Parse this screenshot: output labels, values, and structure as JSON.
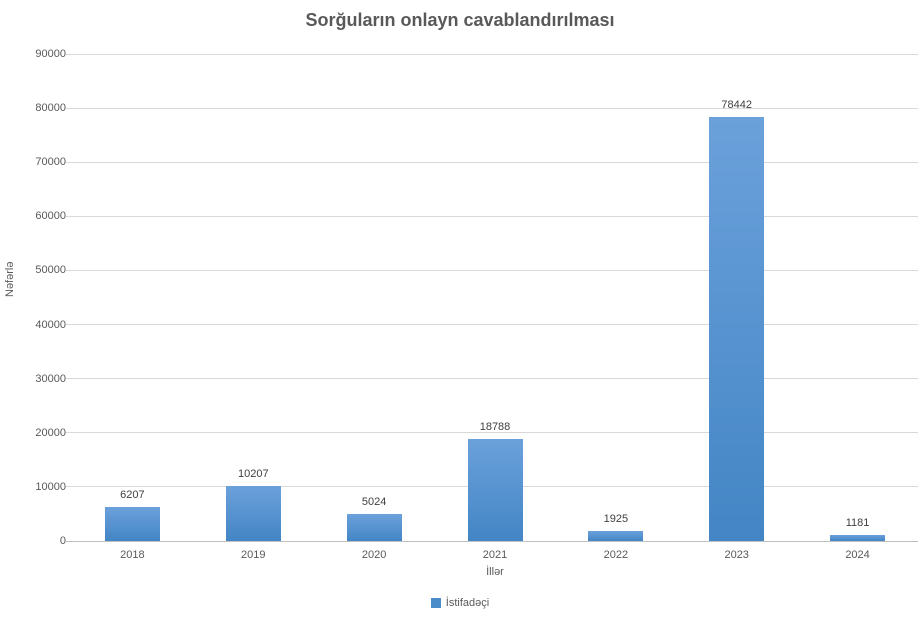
{
  "chart_data": {
    "type": "bar",
    "title": "Sorğuların onlayn cavablandırılması",
    "xlabel": "İllər",
    "ylabel": "Nəfərlə",
    "categories": [
      "2018",
      "2019",
      "2020",
      "2021",
      "2022",
      "2023",
      "2024"
    ],
    "series": [
      {
        "name": "İstifadəçi",
        "values": [
          6207,
          10207,
          5024,
          18788,
          1925,
          78442,
          1181
        ]
      }
    ],
    "data_labels": [
      "6207",
      "10207",
      "5024",
      "18788",
      "1925",
      "78442",
      "1181"
    ],
    "ylim": [
      0,
      90000
    ],
    "ytick_step": 10000,
    "ytick_labels": [
      "0",
      "10000",
      "20000",
      "30000",
      "40000",
      "50000",
      "60000",
      "70000",
      "80000",
      "90000"
    ],
    "grid": true,
    "legend_position": "bottom",
    "colors": {
      "bar_gradient_top": "#6ba1db",
      "bar_gradient_bottom": "#4385c5",
      "legend_swatch": "#4a8bc9",
      "gridline": "#d9d9d9",
      "axis_text": "#595959",
      "title_text": "#595959",
      "data_label_text": "#404040"
    }
  }
}
